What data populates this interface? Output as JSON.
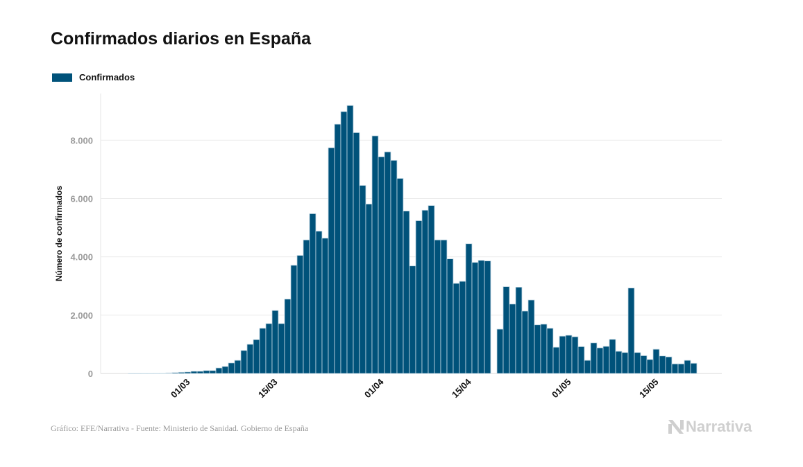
{
  "chart_data": {
    "type": "bar",
    "title": "Confirmados diarios en España",
    "ylabel": "Número de confirmados",
    "xlabel": "",
    "legend": [
      {
        "name": "Confirmados",
        "color": "#00527a"
      }
    ],
    "legend_placement": "top-left",
    "grid": true,
    "ylim": [
      0,
      9600
    ],
    "yticks": [
      0,
      2000,
      4000,
      6000,
      8000
    ],
    "ytick_labels": [
      "0",
      "2.000",
      "4.000",
      "6.000",
      "8.000"
    ],
    "xtick_labels": [
      "01/03",
      "15/03",
      "01/04",
      "15/04",
      "01/05",
      "15/05"
    ],
    "categories": [
      "21/02",
      "22/02",
      "23/02",
      "24/02",
      "25/02",
      "26/02",
      "27/02",
      "28/02",
      "29/02",
      "01/03",
      "02/03",
      "03/03",
      "04/03",
      "05/03",
      "06/03",
      "07/03",
      "08/03",
      "09/03",
      "10/03",
      "11/03",
      "12/03",
      "13/03",
      "14/03",
      "15/03",
      "16/03",
      "17/03",
      "18/03",
      "19/03",
      "20/03",
      "21/03",
      "22/03",
      "23/03",
      "24/03",
      "25/03",
      "26/03",
      "27/03",
      "28/03",
      "29/03",
      "30/03",
      "31/03",
      "01/04",
      "02/04",
      "03/04",
      "04/04",
      "05/04",
      "06/04",
      "07/04",
      "08/04",
      "09/04",
      "10/04",
      "11/04",
      "12/04",
      "13/04",
      "14/04",
      "15/04",
      "16/04",
      "17/04",
      "18/04",
      "19/04",
      "20/04",
      "21/04",
      "22/04",
      "23/04",
      "24/04",
      "25/04",
      "26/04",
      "27/04",
      "28/04",
      "29/04",
      "30/04",
      "01/05",
      "02/05",
      "03/05",
      "04/05",
      "05/05",
      "06/05",
      "07/05",
      "08/05",
      "09/05",
      "10/05",
      "11/05",
      "12/05",
      "13/05",
      "14/05",
      "15/05",
      "16/05",
      "17/05",
      "18/05",
      "19/05",
      "20/05",
      "21/05"
    ],
    "series": [
      {
        "name": "Confirmados",
        "color": "#00527a",
        "values": [
          1,
          1,
          2,
          2,
          5,
          10,
          20,
          30,
          40,
          50,
          75,
          75,
          100,
          100,
          190,
          240,
          360,
          450,
          790,
          1000,
          1160,
          1550,
          1710,
          2160,
          1710,
          2550,
          3710,
          4050,
          4580,
          5480,
          4880,
          4640,
          7740,
          8550,
          8980,
          9190,
          8260,
          6450,
          5810,
          8150,
          7430,
          7600,
          7310,
          6690,
          5570,
          3690,
          5240,
          5600,
          5760,
          4580,
          4580,
          3930,
          3090,
          3160,
          4450,
          3810,
          3880,
          3860,
          null,
          1520,
          2980,
          2380,
          2960,
          2140,
          2520,
          1670,
          1690,
          1550,
          900,
          1280,
          1310,
          1260,
          920,
          450,
          1050,
          880,
          930,
          1170,
          760,
          720,
          2930,
          720,
          610,
          480,
          830,
          600,
          570,
          330,
          330,
          450,
          350
        ]
      }
    ]
  },
  "footer": {
    "source": "Gráfico: EFE/Narrativa - Fuente: Ministerio de Sanidad. Gobierno de España"
  },
  "logo": {
    "text": "Narrativa",
    "icon": "narrativa-n-icon"
  }
}
